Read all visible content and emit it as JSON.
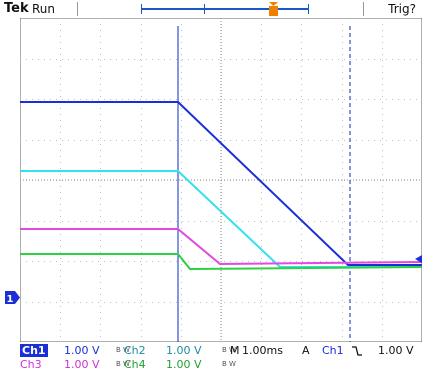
{
  "header": {
    "brand": "Tek",
    "run_state": "Run",
    "trigger_status": "Trig?"
  },
  "colors": {
    "ch1": "#1a2fd6",
    "ch2": "#33e0f0",
    "ch3": "#e04ae0",
    "ch4": "#30d040",
    "grid": "#c0c0c0",
    "trigger": "#f08000"
  },
  "markers": {
    "channel_ground": "1",
    "trigger_position": "T"
  },
  "readouts": {
    "ch1": {
      "label": "Ch1",
      "scale": "1.00 V"
    },
    "ch2": {
      "label": "Ch2",
      "scale": "1.00 V"
    },
    "ch3": {
      "label": "Ch3",
      "scale": "1.00 V"
    },
    "ch4": {
      "label": "Ch4",
      "scale": "1.00 V"
    },
    "timebase": {
      "label": "M",
      "value": "1.00ms"
    },
    "trigger": {
      "mode": "A",
      "source": "Ch1",
      "slope_icon": "falling-edge-icon",
      "level": "1.00 V"
    }
  },
  "bw_indicator": "B W"
}
